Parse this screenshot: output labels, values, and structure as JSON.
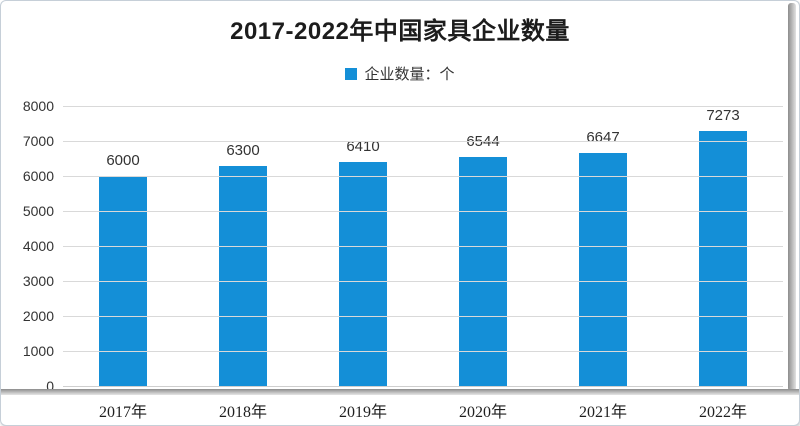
{
  "chart_data": {
    "type": "bar",
    "title": "2017-2022年中国家具企业数量",
    "legend": {
      "label": "企业数量：个",
      "position": "top",
      "color": "#148fd7"
    },
    "categories": [
      "2017年",
      "2018年",
      "2019年",
      "2020年",
      "2021年",
      "2022年"
    ],
    "values": [
      6000,
      6300,
      6410,
      6544,
      6647,
      7273
    ],
    "xlabel": "",
    "ylabel": "",
    "ylim": [
      0,
      8000
    ],
    "ytick_step": 1000,
    "yticks": [
      0,
      1000,
      2000,
      3000,
      4000,
      5000,
      6000,
      7000,
      8000
    ],
    "grid": true,
    "show_value_labels": true,
    "bar_color": "#148fd7",
    "gridline_color": "#d9d9d9"
  }
}
